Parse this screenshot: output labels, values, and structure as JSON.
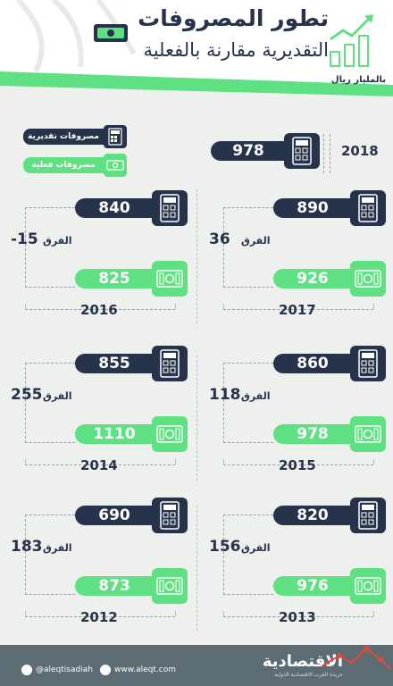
{
  "header": {
    "title_line1": "تطور المصروفات",
    "title_line2": "التقديرية مقارنة بالفعلية",
    "unit": "بالمليار ريال"
  },
  "legend": {
    "estimated_label": "مصروفات تقديرية",
    "actual_label": "مصروفات فعلية"
  },
  "diff_word": "الفرق",
  "footer": {
    "twitter": "@aleqtisadiah",
    "website": "www.aleqt.com",
    "brand": "الاقتصادية",
    "brand_sub": "جريدة العرب الاقتصادية الدولية"
  },
  "colors": {
    "estimated": "#27334a",
    "actual": "#5fe082",
    "background": "#eef0ee",
    "footer": "#5d6b73"
  },
  "chart_data": {
    "type": "bar",
    "title": "تطور المصروفات التقديرية مقارنة بالفعلية",
    "ylabel": "بالمليار ريال",
    "categories": [
      "2012",
      "2013",
      "2014",
      "2015",
      "2016",
      "2017",
      "2018"
    ],
    "series": [
      {
        "name": "مصروفات تقديرية",
        "values": [
          690,
          820,
          855,
          860,
          840,
          890,
          978
        ]
      },
      {
        "name": "مصروفات فعلية",
        "values": [
          873,
          976,
          1110,
          978,
          825,
          926,
          null
        ]
      }
    ],
    "differences": [
      "183",
      "156",
      "255",
      "118",
      "-15",
      "36",
      null
    ],
    "grid": false,
    "legend_position": "top-left"
  }
}
